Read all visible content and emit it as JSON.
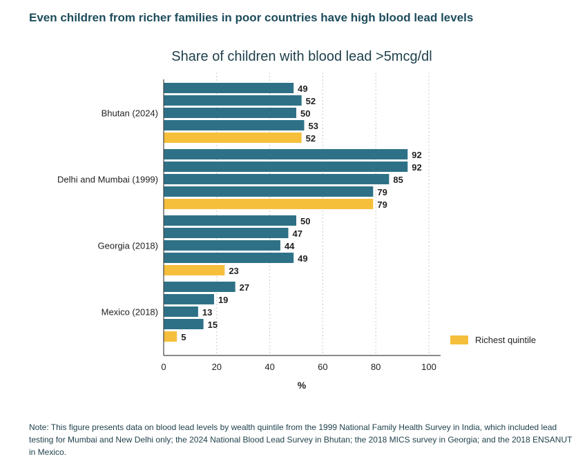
{
  "headline": "Even children from richer families in poor countries have high blood lead levels",
  "chart_data": {
    "type": "bar",
    "orientation": "horizontal",
    "title": "Share of children with blood lead >5mcg/dl",
    "xlabel": "%",
    "ylabel": "",
    "xlim": [
      0,
      100
    ],
    "xticks": [
      0,
      20,
      40,
      60,
      80,
      100
    ],
    "grid": true,
    "groups": [
      {
        "name": "Bhutan (2024)",
        "values": [
          49,
          52,
          50,
          53,
          52
        ]
      },
      {
        "name": "Delhi and Mumbai (1999)",
        "values": [
          92,
          92,
          85,
          79,
          79
        ]
      },
      {
        "name": "Georgia (2018)",
        "values": [
          50,
          47,
          44,
          49,
          23
        ]
      },
      {
        "name": "Mexico (2018)",
        "values": [
          27,
          19,
          13,
          15,
          5
        ]
      }
    ],
    "legend": {
      "label": "Richest quintile",
      "position": "bottom-right"
    },
    "colors": {
      "quintile": "#2e7186",
      "richest": "#f5bf3c"
    }
  },
  "note": "Note: This figure presents data on blood lead levels by wealth quintile from the 1999 National Family Health Survey in India, which included lead testing for Mumbai and New Delhi only; the 2024 National Blood Lead Survey in Bhutan; the 2018 MICS survey in Georgia; and the 2018 ENSANUT in Mexico."
}
